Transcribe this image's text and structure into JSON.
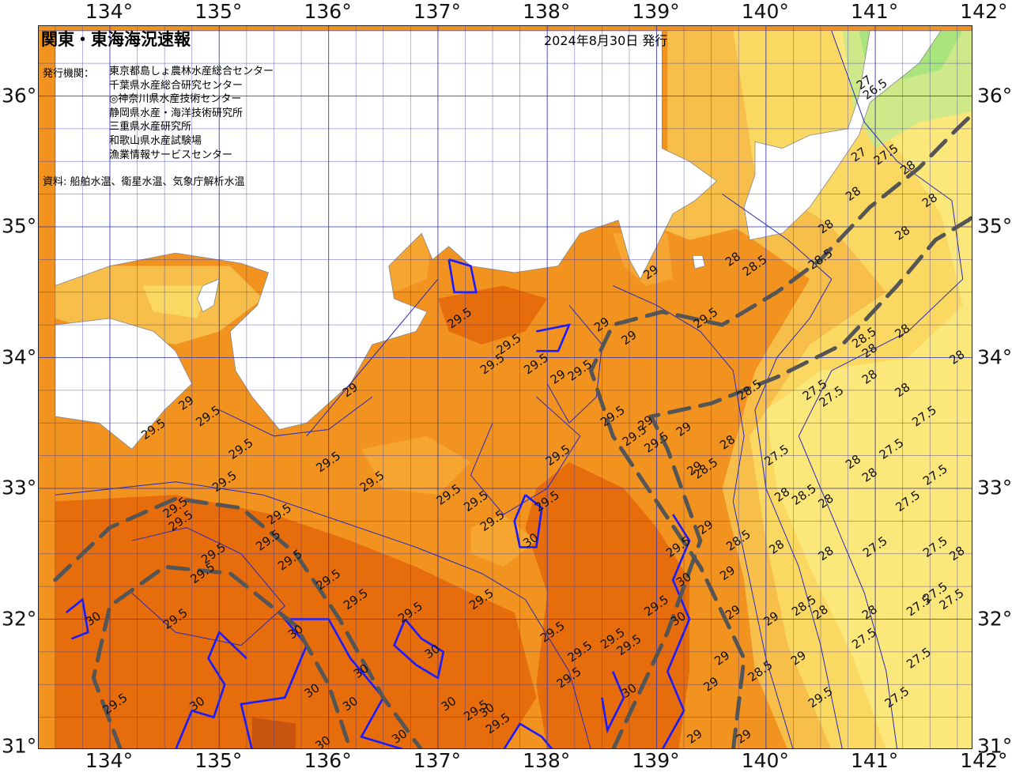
{
  "header": {
    "title": "関東・東海海況速報",
    "date": "2024年8月30日 発行",
    "issuer_label": "発行機関：",
    "issuers": [
      "東京都島しょ農林水産総合センター",
      "千葉県水産総合研究センター",
      "◎神奈川県水産技術センター",
      "静岡県水産・海洋技術研究所",
      "三重県水産研究所",
      "和歌山県水産試験場",
      "漁業情報サービスセンター"
    ],
    "source": "資料: 船舶水温、衛星水温、気象庁解析水温"
  },
  "axes": {
    "longitudes": [
      "134°",
      "135°",
      "136°",
      "137°",
      "138°",
      "139°",
      "140°",
      "141°",
      "142°"
    ],
    "latitudes": [
      "36°",
      "35°",
      "34°",
      "33°",
      "32°",
      "31°"
    ]
  },
  "map": {
    "type": "sea-surface-temperature",
    "colors": {
      "sst_30": "#e66c0c",
      "sst_29_5": "#f2921f",
      "sst_29": "#f5a530",
      "sst_28_5": "#f7bf4a",
      "sst_28": "#fad862",
      "sst_27_5": "#fbe77a",
      "sst_27": "#cfe88a",
      "sst_26_5": "#a9e47c",
      "sst_26": "#8fe85e",
      "sst_31": "#c85410",
      "land": "#ffffff",
      "isotherm_30": "#1a1aff",
      "isotherm_minor": "#2a2ab8",
      "current_axis": "#555555",
      "grid": "#3a3aa8"
    },
    "isotherm_labels": [
      {
        "text": "27",
        "lon": 140.9,
        "lat": 36.1
      },
      {
        "text": "26.5",
        "lon": 141.0,
        "lat": 36.05
      },
      {
        "text": "27",
        "lon": 140.85,
        "lat": 35.55
      },
      {
        "text": "27.5",
        "lon": 141.1,
        "lat": 35.55
      },
      {
        "text": "28",
        "lon": 141.3,
        "lat": 35.45
      },
      {
        "text": "28",
        "lon": 140.8,
        "lat": 35.25
      },
      {
        "text": "28",
        "lon": 141.5,
        "lat": 35.2
      },
      {
        "text": "28",
        "lon": 140.55,
        "lat": 35.0
      },
      {
        "text": "28",
        "lon": 141.25,
        "lat": 34.95
      },
      {
        "text": "28.5",
        "lon": 140.5,
        "lat": 34.75
      },
      {
        "text": "28.5",
        "lon": 139.9,
        "lat": 34.7
      },
      {
        "text": "28",
        "lon": 139.7,
        "lat": 34.75
      },
      {
        "text": "29",
        "lon": 138.95,
        "lat": 34.65
      },
      {
        "text": "29.5",
        "lon": 139.45,
        "lat": 34.3
      },
      {
        "text": "29",
        "lon": 138.5,
        "lat": 34.25
      },
      {
        "text": "29",
        "lon": 138.75,
        "lat": 34.15
      },
      {
        "text": "29.5",
        "lon": 137.2,
        "lat": 34.3
      },
      {
        "text": "29.5",
        "lon": 137.65,
        "lat": 34.1
      },
      {
        "text": "29.5",
        "lon": 137.5,
        "lat": 33.95
      },
      {
        "text": "29.5",
        "lon": 137.9,
        "lat": 33.95
      },
      {
        "text": "29.5",
        "lon": 138.3,
        "lat": 33.9
      },
      {
        "text": "28",
        "lon": 141.25,
        "lat": 34.2
      },
      {
        "text": "28.5",
        "lon": 140.9,
        "lat": 34.15
      },
      {
        "text": "28",
        "lon": 140.95,
        "lat": 34.05
      },
      {
        "text": "28",
        "lon": 141.75,
        "lat": 34.0
      },
      {
        "text": "28",
        "lon": 140.95,
        "lat": 33.85
      },
      {
        "text": "28.5",
        "lon": 139.85,
        "lat": 33.75
      },
      {
        "text": "27.5",
        "lon": 140.45,
        "lat": 33.75
      },
      {
        "text": "27.5",
        "lon": 140.6,
        "lat": 33.7
      },
      {
        "text": "28",
        "lon": 141.25,
        "lat": 33.75
      },
      {
        "text": "27.5",
        "lon": 141.45,
        "lat": 33.55
      },
      {
        "text": "29",
        "lon": 138.1,
        "lat": 33.85
      },
      {
        "text": "29",
        "lon": 136.2,
        "lat": 33.75
      },
      {
        "text": "29",
        "lon": 134.7,
        "lat": 33.65
      },
      {
        "text": "29.5",
        "lon": 134.9,
        "lat": 33.55
      },
      {
        "text": "29.5",
        "lon": 134.4,
        "lat": 33.45
      },
      {
        "text": "29.5",
        "lon": 135.2,
        "lat": 33.3
      },
      {
        "text": "29.5",
        "lon": 136.0,
        "lat": 33.2
      },
      {
        "text": "29.5",
        "lon": 136.4,
        "lat": 33.05
      },
      {
        "text": "29.5",
        "lon": 135.05,
        "lat": 33.05
      },
      {
        "text": "29.5",
        "lon": 137.35,
        "lat": 32.9
      },
      {
        "text": "29.5",
        "lon": 137.5,
        "lat": 32.75
      },
      {
        "text": "29.5",
        "lon": 138.8,
        "lat": 33.4
      },
      {
        "text": "29.5",
        "lon": 138.6,
        "lat": 33.55
      },
      {
        "text": "29",
        "lon": 138.9,
        "lat": 33.5
      },
      {
        "text": "29.5",
        "lon": 139.0,
        "lat": 33.35
      },
      {
        "text": "29",
        "lon": 139.25,
        "lat": 33.45
      },
      {
        "text": "28",
        "lon": 139.65,
        "lat": 33.35
      },
      {
        "text": "27.5",
        "lon": 140.1,
        "lat": 33.25
      },
      {
        "text": "27.5",
        "lon": 141.15,
        "lat": 33.3
      },
      {
        "text": "28",
        "lon": 140.8,
        "lat": 33.2
      },
      {
        "text": "28.5",
        "lon": 139.45,
        "lat": 33.15
      },
      {
        "text": "29",
        "lon": 139.35,
        "lat": 33.15
      },
      {
        "text": "28",
        "lon": 140.95,
        "lat": 33.1
      },
      {
        "text": "27.5",
        "lon": 141.55,
        "lat": 33.1
      },
      {
        "text": "27.5",
        "lon": 141.3,
        "lat": 32.9
      },
      {
        "text": "28",
        "lon": 140.15,
        "lat": 32.95
      },
      {
        "text": "28.5",
        "lon": 140.35,
        "lat": 32.95
      },
      {
        "text": "28",
        "lon": 140.55,
        "lat": 32.9
      },
      {
        "text": "29.5",
        "lon": 138.0,
        "lat": 32.9
      },
      {
        "text": "29.5",
        "lon": 138.1,
        "lat": 33.25
      },
      {
        "text": "29.5",
        "lon": 137.1,
        "lat": 32.95
      },
      {
        "text": "30",
        "lon": 137.85,
        "lat": 32.6
      },
      {
        "text": "29.5",
        "lon": 134.6,
        "lat": 32.85
      },
      {
        "text": "29.5",
        "lon": 134.65,
        "lat": 32.75
      },
      {
        "text": "29.5",
        "lon": 135.55,
        "lat": 32.8
      },
      {
        "text": "29.5",
        "lon": 135.65,
        "lat": 32.45
      },
      {
        "text": "29.5",
        "lon": 135.45,
        "lat": 32.6
      },
      {
        "text": "29.5",
        "lon": 134.95,
        "lat": 32.5
      },
      {
        "text": "29.5",
        "lon": 134.85,
        "lat": 32.35
      },
      {
        "text": "29.5",
        "lon": 136.0,
        "lat": 32.3
      },
      {
        "text": "29.5",
        "lon": 136.25,
        "lat": 32.15
      },
      {
        "text": "29.5",
        "lon": 136.75,
        "lat": 32.05
      },
      {
        "text": "29.5",
        "lon": 137.4,
        "lat": 32.15
      },
      {
        "text": "29.5",
        "lon": 134.6,
        "lat": 32.0
      },
      {
        "text": "29",
        "lon": 139.45,
        "lat": 32.7
      },
      {
        "text": "28.5",
        "lon": 139.75,
        "lat": 32.6
      },
      {
        "text": "29.5",
        "lon": 139.2,
        "lat": 32.55
      },
      {
        "text": "30",
        "lon": 139.25,
        "lat": 32.3
      },
      {
        "text": "29",
        "lon": 139.65,
        "lat": 32.35
      },
      {
        "text": "29.5",
        "lon": 139.0,
        "lat": 32.1
      },
      {
        "text": "30",
        "lon": 139.2,
        "lat": 32.0
      },
      {
        "text": "28",
        "lon": 140.1,
        "lat": 32.55
      },
      {
        "text": "28",
        "lon": 140.55,
        "lat": 32.5
      },
      {
        "text": "27.5",
        "lon": 141.0,
        "lat": 32.55
      },
      {
        "text": "27.5",
        "lon": 141.55,
        "lat": 32.55
      },
      {
        "text": "28",
        "lon": 141.75,
        "lat": 32.5
      },
      {
        "text": "28",
        "lon": 140.95,
        "lat": 32.05
      },
      {
        "text": "28",
        "lon": 140.5,
        "lat": 32.05
      },
      {
        "text": "28.5",
        "lon": 140.35,
        "lat": 32.1
      },
      {
        "text": "29",
        "lon": 140.05,
        "lat": 32.0
      },
      {
        "text": "27.5",
        "lon": 141.4,
        "lat": 32.1
      },
      {
        "text": "27.5",
        "lon": 141.7,
        "lat": 32.15
      },
      {
        "text": "27.5",
        "lon": 141.55,
        "lat": 32.2
      },
      {
        "text": "27.5",
        "lon": 140.9,
        "lat": 31.85
      },
      {
        "text": "29",
        "lon": 139.7,
        "lat": 32.05
      },
      {
        "text": "29",
        "lon": 140.3,
        "lat": 31.7
      },
      {
        "text": "28.5",
        "lon": 139.95,
        "lat": 31.6
      },
      {
        "text": "29",
        "lon": 139.6,
        "lat": 31.7
      },
      {
        "text": "29",
        "lon": 139.5,
        "lat": 31.5
      },
      {
        "text": "29.5",
        "lon": 138.6,
        "lat": 31.85
      },
      {
        "text": "29.5",
        "lon": 138.75,
        "lat": 31.8
      },
      {
        "text": "29.5",
        "lon": 138.3,
        "lat": 31.75
      },
      {
        "text": "29.5",
        "lon": 138.2,
        "lat": 31.55
      },
      {
        "text": "29.5",
        "lon": 138.05,
        "lat": 31.9
      },
      {
        "text": "30",
        "lon": 136.3,
        "lat": 31.6
      },
      {
        "text": "30",
        "lon": 135.7,
        "lat": 31.9
      },
      {
        "text": "30",
        "lon": 136.95,
        "lat": 31.75
      },
      {
        "text": "30",
        "lon": 135.85,
        "lat": 31.45
      },
      {
        "text": "30",
        "lon": 136.2,
        "lat": 31.35
      },
      {
        "text": "30",
        "lon": 134.8,
        "lat": 31.35
      },
      {
        "text": "30",
        "lon": 137.1,
        "lat": 31.35
      },
      {
        "text": "30",
        "lon": 137.45,
        "lat": 31.3
      },
      {
        "text": "30",
        "lon": 138.75,
        "lat": 31.45
      },
      {
        "text": "30",
        "lon": 136.65,
        "lat": 31.1
      },
      {
        "text": "29.5",
        "lon": 137.35,
        "lat": 31.3
      },
      {
        "text": "29.5",
        "lon": 137.55,
        "lat": 31.2
      },
      {
        "text": "29.5",
        "lon": 134.05,
        "lat": 31.35
      },
      {
        "text": "30",
        "lon": 133.85,
        "lat": 32.0
      },
      {
        "text": "30",
        "lon": 135.95,
        "lat": 31.05
      },
      {
        "text": "29",
        "lon": 139.35,
        "lat": 31.1
      },
      {
        "text": "29",
        "lon": 139.8,
        "lat": 31.1
      },
      {
        "text": "29.5",
        "lon": 140.5,
        "lat": 31.4
      },
      {
        "text": "27.5",
        "lon": 141.2,
        "lat": 31.4
      },
      {
        "text": "27.5",
        "lon": 141.4,
        "lat": 31.7
      }
    ]
  }
}
